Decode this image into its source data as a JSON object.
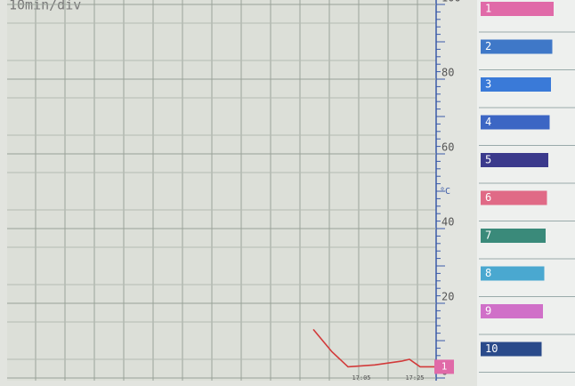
{
  "chart_data": {
    "type": "line",
    "title": "10min/div",
    "y_label": "°C",
    "xticks": [
      {
        "value": 1025,
        "label": "17:05"
      },
      {
        "value": 1045,
        "label": "17:25"
      }
    ],
    "xlim": [
      893,
      1053
    ],
    "ylim": [
      0,
      100
    ],
    "yticks": [
      0,
      20,
      40,
      60,
      80,
      100
    ],
    "grid": true,
    "series": [
      {
        "name": "1",
        "color": "#d23a3a",
        "x": [
          1007,
          1014,
          1020,
          1030,
          1040,
          1043,
          1047,
          1053
        ],
        "values": [
          13,
          7,
          3,
          3.5,
          4.5,
          5,
          3,
          3
        ]
      }
    ],
    "channels": [
      {
        "name": "1",
        "color": "#e06aa8"
      },
      {
        "name": "2",
        "color": "#3f78c8"
      },
      {
        "name": "3",
        "color": "#3a7ad8"
      },
      {
        "name": "4",
        "color": "#3c66c4"
      },
      {
        "name": "5",
        "color": "#3b3a8c"
      },
      {
        "name": "6",
        "color": "#e06a86"
      },
      {
        "name": "7",
        "color": "#3a8a7a"
      },
      {
        "name": "8",
        "color": "#4aa8d0"
      },
      {
        "name": "9",
        "color": "#d070c8"
      },
      {
        "name": "10",
        "color": "#2a4a8a"
      }
    ]
  }
}
